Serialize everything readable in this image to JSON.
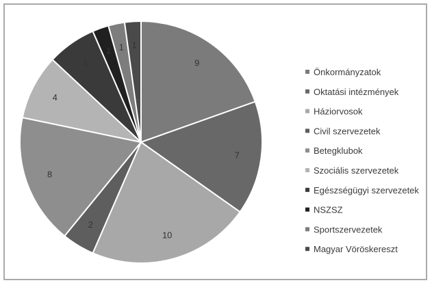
{
  "chart_data": {
    "type": "pie",
    "title": "",
    "legend_position": "right",
    "start_angle_deg": 0,
    "direction": "clockwise",
    "slices": [
      {
        "label": "Önkormányzatok",
        "value": 9,
        "color": "#7b7b7b"
      },
      {
        "label": "Oktatási intézmények",
        "value": 7,
        "color": "#686868"
      },
      {
        "label": "Háziorvosok",
        "value": 10,
        "color": "#a8a8a8"
      },
      {
        "label": "Civil szervezetek",
        "value": 2,
        "color": "#5e5e5e"
      },
      {
        "label": "Betegklubok",
        "value": 8,
        "color": "#8e8e8e"
      },
      {
        "label": "Szociális szervezetek",
        "value": 4,
        "color": "#b4b4b4"
      },
      {
        "label": "Egészségügyi szervezetek",
        "value": 3,
        "color": "#3a3a3a"
      },
      {
        "label": "NSZSZ",
        "value": 1,
        "color": "#202020"
      },
      {
        "label": "Sportszervezetek",
        "value": 1,
        "color": "#7d7d7d"
      },
      {
        "label": "Magyar Vöröskereszt",
        "value": 1,
        "color": "#4a4a4a"
      }
    ]
  }
}
